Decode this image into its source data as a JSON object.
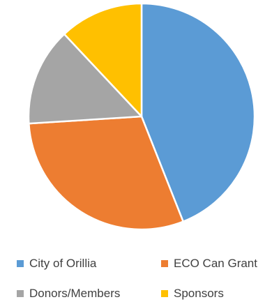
{
  "chart_data": {
    "type": "pie",
    "categories": [
      "City of Orillia",
      "ECO Can Grant",
      "Donors/Members",
      "Sponsors"
    ],
    "values": [
      44,
      30,
      14,
      12
    ],
    "colors": [
      "#5B9BD5",
      "#ED7D31",
      "#A5A5A5",
      "#FFC000"
    ],
    "title": "",
    "legend_position": "bottom",
    "start_angle": "top, clockwise"
  }
}
